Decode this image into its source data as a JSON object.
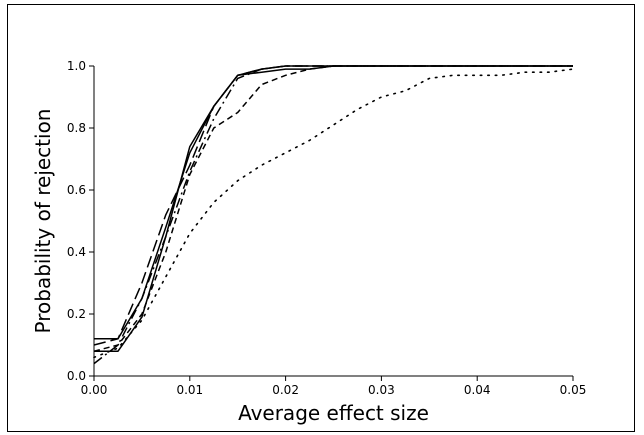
{
  "chart_data": {
    "type": "line",
    "title": "",
    "xlabel": "Average effect size",
    "ylabel": "Probability of rejection",
    "xlim": [
      0.0,
      0.05
    ],
    "ylim": [
      0.0,
      1.0
    ],
    "xticks": [
      0.0,
      0.01,
      0.02,
      0.03,
      0.04,
      0.05
    ],
    "xtick_labels": [
      "0.00",
      "0.01",
      "0.02",
      "0.03",
      "0.04",
      "0.05"
    ],
    "yticks": [
      0.0,
      0.2,
      0.4,
      0.6,
      0.8,
      1.0
    ],
    "ytick_labels": [
      "0.0",
      "0.2",
      "0.4",
      "0.6",
      "0.8",
      "1.0"
    ],
    "grid": false,
    "legend": "none",
    "series": [
      {
        "style": "solid",
        "x": [
          0.0,
          0.0025,
          0.005,
          0.0075,
          0.01,
          0.0125,
          0.015,
          0.0175,
          0.02,
          0.0225,
          0.025,
          0.03,
          0.05
        ],
        "y": [
          0.08,
          0.08,
          0.19,
          0.45,
          0.74,
          0.87,
          0.97,
          0.98,
          0.99,
          0.99,
          1.0,
          1.0,
          1.0
        ]
      },
      {
        "style": "solid",
        "x": [
          0.0,
          0.0025,
          0.005,
          0.0075,
          0.01,
          0.0125,
          0.015,
          0.0175,
          0.02,
          0.025,
          0.05
        ],
        "y": [
          0.12,
          0.12,
          0.25,
          0.48,
          0.72,
          0.87,
          0.97,
          0.99,
          1.0,
          1.0,
          1.0
        ]
      },
      {
        "style": "long-dash",
        "x": [
          0.0,
          0.0025,
          0.005,
          0.0075,
          0.01,
          0.0125,
          0.015,
          0.0175,
          0.02,
          0.025,
          0.05
        ],
        "y": [
          0.1,
          0.12,
          0.3,
          0.52,
          0.68,
          0.87,
          0.97,
          0.99,
          1.0,
          1.0,
          1.0
        ]
      },
      {
        "style": "short-dash",
        "x": [
          0.0,
          0.0025,
          0.005,
          0.0075,
          0.01,
          0.0125,
          0.015,
          0.0175,
          0.02,
          0.0225,
          0.025,
          0.03,
          0.05
        ],
        "y": [
          0.08,
          0.1,
          0.2,
          0.4,
          0.65,
          0.8,
          0.85,
          0.94,
          0.97,
          0.99,
          1.0,
          1.0,
          1.0
        ]
      },
      {
        "style": "dash-dot",
        "x": [
          0.0,
          0.0025,
          0.005,
          0.0075,
          0.01,
          0.0125,
          0.015,
          0.0175,
          0.02,
          0.025,
          0.05
        ],
        "y": [
          0.04,
          0.1,
          0.25,
          0.45,
          0.66,
          0.83,
          0.96,
          0.99,
          1.0,
          1.0,
          1.0
        ]
      },
      {
        "style": "dotted",
        "x": [
          0.0,
          0.0025,
          0.005,
          0.0075,
          0.01,
          0.0125,
          0.015,
          0.0175,
          0.02,
          0.0225,
          0.025,
          0.0275,
          0.03,
          0.0325,
          0.035,
          0.0375,
          0.04,
          0.0425,
          0.045,
          0.0475,
          0.05
        ],
        "y": [
          0.06,
          0.09,
          0.18,
          0.32,
          0.46,
          0.56,
          0.63,
          0.68,
          0.72,
          0.76,
          0.81,
          0.86,
          0.9,
          0.92,
          0.96,
          0.97,
          0.97,
          0.97,
          0.98,
          0.98,
          0.99
        ]
      }
    ]
  }
}
